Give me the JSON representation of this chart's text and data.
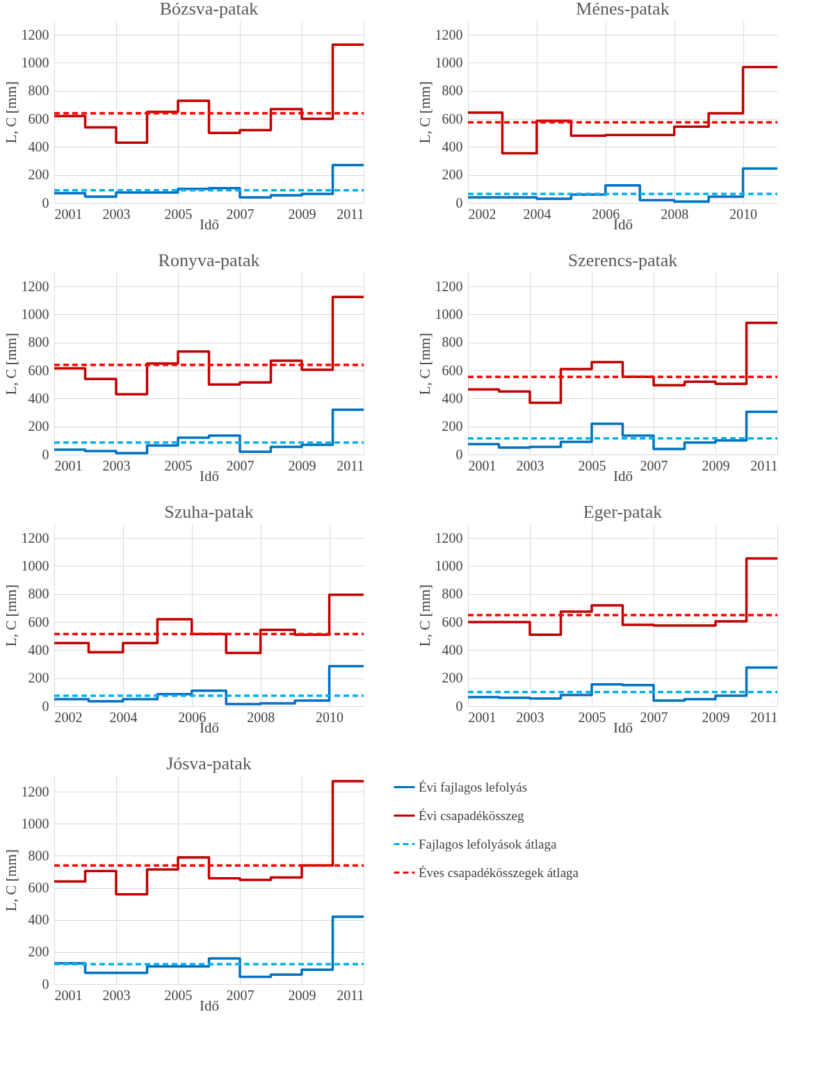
{
  "chart_data": [
    {
      "type": "step",
      "title": "Bózsva-patak",
      "xlabel": "Idő",
      "ylabel": "L, C [mm]",
      "x": [
        2001,
        2002,
        2003,
        2004,
        2005,
        2006,
        2007,
        2008,
        2009,
        2010,
        2011
      ],
      "xlim": [
        2001,
        2011
      ],
      "xticks": [
        2001,
        2003,
        2005,
        2007,
        2009,
        2011
      ],
      "ylim": [
        0,
        1300
      ],
      "yticks": [
        0,
        200,
        400,
        600,
        800,
        1000,
        1200
      ],
      "grid": true,
      "legend": false,
      "series": [
        {
          "type": "step",
          "color": "#0070c0",
          "values": [
            70,
            45,
            75,
            75,
            100,
            105,
            40,
            55,
            65,
            270,
            270
          ]
        },
        {
          "type": "step",
          "color": "#c00000",
          "values": [
            620,
            540,
            430,
            650,
            730,
            500,
            520,
            670,
            600,
            1130,
            1130
          ]
        },
        {
          "type": "line",
          "line_style": "dashed",
          "color": "#00b0f0",
          "values": [
            90,
            90,
            90,
            90,
            90,
            90,
            90,
            90,
            90,
            90,
            90
          ]
        },
        {
          "type": "line",
          "line_style": "dashed",
          "color": "#ff0000",
          "values": [
            640,
            640,
            640,
            640,
            640,
            640,
            640,
            640,
            640,
            640,
            640
          ]
        }
      ]
    },
    {
      "type": "step",
      "title": "Ménes-patak",
      "xlabel": "Idő",
      "ylabel": "L, C [mm]",
      "x": [
        2002,
        2003,
        2004,
        2005,
        2006,
        2007,
        2008,
        2009,
        2010,
        2011
      ],
      "xlim": [
        2002,
        2011
      ],
      "xticks": [
        2002,
        2004,
        2006,
        2008,
        2010
      ],
      "ylim": [
        0,
        1300
      ],
      "yticks": [
        0,
        200,
        400,
        600,
        800,
        1000,
        1200
      ],
      "grid": true,
      "legend": false,
      "series": [
        {
          "type": "step",
          "color": "#0070c0",
          "values": [
            40,
            40,
            30,
            60,
            125,
            20,
            10,
            45,
            245,
            245
          ]
        },
        {
          "type": "step",
          "color": "#c00000",
          "values": [
            645,
            355,
            585,
            480,
            485,
            485,
            545,
            640,
            970,
            970
          ]
        },
        {
          "type": "line",
          "line_style": "dashed",
          "color": "#00b0f0",
          "values": [
            65,
            65,
            65,
            65,
            65,
            65,
            65,
            65,
            65,
            65
          ]
        },
        {
          "type": "line",
          "line_style": "dashed",
          "color": "#ff0000",
          "values": [
            575,
            575,
            575,
            575,
            575,
            575,
            575,
            575,
            575,
            575
          ]
        }
      ]
    },
    {
      "type": "step",
      "title": "Ronyva-patak",
      "xlabel": "Idő",
      "ylabel": "L, C [mm]",
      "x": [
        2001,
        2002,
        2003,
        2004,
        2005,
        2006,
        2007,
        2008,
        2009,
        2010,
        2011
      ],
      "xlim": [
        2001,
        2011
      ],
      "xticks": [
        2001,
        2003,
        2005,
        2007,
        2009,
        2011
      ],
      "ylim": [
        0,
        1300
      ],
      "yticks": [
        0,
        200,
        400,
        600,
        800,
        1000,
        1200
      ],
      "grid": true,
      "legend": false,
      "series": [
        {
          "type": "step",
          "color": "#0070c0",
          "values": [
            35,
            25,
            10,
            65,
            120,
            135,
            20,
            55,
            70,
            320,
            320
          ]
        },
        {
          "type": "step",
          "color": "#c00000",
          "values": [
            615,
            540,
            430,
            650,
            735,
            500,
            515,
            670,
            605,
            1125,
            1125
          ]
        },
        {
          "type": "line",
          "line_style": "dashed",
          "color": "#00b0f0",
          "values": [
            85,
            85,
            85,
            85,
            85,
            85,
            85,
            85,
            85,
            85,
            85
          ]
        },
        {
          "type": "line",
          "line_style": "dashed",
          "color": "#ff0000",
          "values": [
            640,
            640,
            640,
            640,
            640,
            640,
            640,
            640,
            640,
            640,
            640
          ]
        }
      ]
    },
    {
      "type": "step",
      "title": "Szerencs-patak",
      "xlabel": "Idő",
      "ylabel": "L, C [mm]",
      "x": [
        2001,
        2002,
        2003,
        2004,
        2005,
        2006,
        2007,
        2008,
        2009,
        2010,
        2011
      ],
      "xlim": [
        2001,
        2011
      ],
      "xticks": [
        2001,
        2003,
        2005,
        2007,
        2009,
        2011
      ],
      "ylim": [
        0,
        1300
      ],
      "yticks": [
        0,
        200,
        400,
        600,
        800,
        1000,
        1200
      ],
      "grid": true,
      "legend": false,
      "series": [
        {
          "type": "step",
          "color": "#0070c0",
          "values": [
            75,
            50,
            55,
            90,
            220,
            135,
            40,
            85,
            100,
            305,
            305
          ]
        },
        {
          "type": "step",
          "color": "#c00000",
          "values": [
            465,
            450,
            370,
            610,
            660,
            555,
            495,
            520,
            505,
            940,
            940
          ]
        },
        {
          "type": "line",
          "line_style": "dashed",
          "color": "#00b0f0",
          "values": [
            115,
            115,
            115,
            115,
            115,
            115,
            115,
            115,
            115,
            115,
            115
          ]
        },
        {
          "type": "line",
          "line_style": "dashed",
          "color": "#ff0000",
          "values": [
            555,
            555,
            555,
            555,
            555,
            555,
            555,
            555,
            555,
            555,
            555
          ]
        }
      ]
    },
    {
      "type": "step",
      "title": "Szuha-patak",
      "xlabel": "Idő",
      "ylabel": "L, C [mm]",
      "x": [
        2002,
        2003,
        2004,
        2005,
        2006,
        2007,
        2008,
        2009,
        2010,
        2011
      ],
      "xlim": [
        2002,
        2011
      ],
      "xticks": [
        2002,
        2004,
        2006,
        2008,
        2010
      ],
      "ylim": [
        0,
        1300
      ],
      "yticks": [
        0,
        200,
        400,
        600,
        800,
        1000,
        1200
      ],
      "grid": true,
      "legend": false,
      "series": [
        {
          "type": "step",
          "color": "#0070c0",
          "values": [
            50,
            35,
            50,
            85,
            110,
            15,
            20,
            40,
            285,
            285
          ]
        },
        {
          "type": "step",
          "color": "#c00000",
          "values": [
            450,
            385,
            450,
            620,
            515,
            380,
            545,
            510,
            795,
            795
          ]
        },
        {
          "type": "line",
          "line_style": "dashed",
          "color": "#00b0f0",
          "values": [
            75,
            75,
            75,
            75,
            75,
            75,
            75,
            75,
            75,
            75
          ]
        },
        {
          "type": "line",
          "line_style": "dashed",
          "color": "#ff0000",
          "values": [
            515,
            515,
            515,
            515,
            515,
            515,
            515,
            515,
            515,
            515
          ]
        }
      ]
    },
    {
      "type": "step",
      "title": "Eger-patak",
      "xlabel": "Idő",
      "ylabel": "L, C [mm]",
      "x": [
        2001,
        2002,
        2003,
        2004,
        2005,
        2006,
        2007,
        2008,
        2009,
        2010,
        2011
      ],
      "xlim": [
        2001,
        2011
      ],
      "xticks": [
        2001,
        2003,
        2005,
        2007,
        2009,
        2011
      ],
      "ylim": [
        0,
        1300
      ],
      "yticks": [
        0,
        200,
        400,
        600,
        800,
        1000,
        1200
      ],
      "grid": true,
      "legend": false,
      "series": [
        {
          "type": "step",
          "color": "#0070c0",
          "values": [
            65,
            60,
            55,
            80,
            155,
            150,
            40,
            50,
            75,
            275,
            275
          ]
        },
        {
          "type": "step",
          "color": "#c00000",
          "values": [
            600,
            600,
            510,
            675,
            720,
            580,
            575,
            575,
            605,
            1055,
            1055
          ]
        },
        {
          "type": "line",
          "line_style": "dashed",
          "color": "#00b0f0",
          "values": [
            100,
            100,
            100,
            100,
            100,
            100,
            100,
            100,
            100,
            100,
            100
          ]
        },
        {
          "type": "line",
          "line_style": "dashed",
          "color": "#ff0000",
          "values": [
            650,
            650,
            650,
            650,
            650,
            650,
            650,
            650,
            650,
            650,
            650
          ]
        }
      ]
    },
    {
      "type": "step",
      "title": "Jósva-patak",
      "xlabel": "Idő",
      "ylabel": "L, C [mm]",
      "x": [
        2001,
        2002,
        2003,
        2004,
        2005,
        2006,
        2007,
        2008,
        2009,
        2010,
        2011
      ],
      "xlim": [
        2001,
        2011
      ],
      "xticks": [
        2001,
        2003,
        2005,
        2007,
        2009,
        2011
      ],
      "ylim": [
        0,
        1300
      ],
      "yticks": [
        0,
        200,
        400,
        600,
        800,
        1000,
        1200
      ],
      "grid": true,
      "legend": "right",
      "series": [
        {
          "type": "step",
          "name": "Évi fajlagos lefolyás",
          "color": "#0070c0",
          "values": [
            130,
            70,
            70,
            110,
            110,
            160,
            45,
            60,
            90,
            420,
            420
          ]
        },
        {
          "type": "step",
          "name": "Évi csapadékösszeg",
          "color": "#c00000",
          "values": [
            640,
            705,
            560,
            715,
            790,
            660,
            650,
            665,
            740,
            1265,
            1265
          ]
        },
        {
          "type": "line",
          "name": "Fajlagos lefolyások átlaga",
          "line_style": "dashed",
          "color": "#00b0f0",
          "values": [
            125,
            125,
            125,
            125,
            125,
            125,
            125,
            125,
            125,
            125,
            125
          ]
        },
        {
          "type": "line",
          "name": "Éves csapadékösszegek átlaga",
          "line_style": "dashed",
          "color": "#ff0000",
          "values": [
            740,
            740,
            740,
            740,
            740,
            740,
            740,
            740,
            740,
            740,
            740
          ]
        }
      ]
    }
  ]
}
